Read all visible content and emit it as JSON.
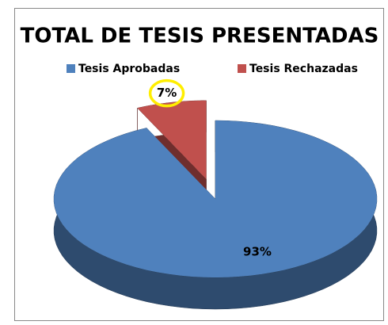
{
  "chart_data": {
    "type": "pie",
    "title": "TOTAL DE TESIS PRESENTADAS",
    "categories": [
      "Tesis Aprobadas",
      "Tesis Rechazadas"
    ],
    "values": [
      93,
      7
    ],
    "value_labels": [
      "93%",
      "7%"
    ],
    "colors": [
      "#4f81bd",
      "#c0504d"
    ],
    "legend": "top"
  }
}
